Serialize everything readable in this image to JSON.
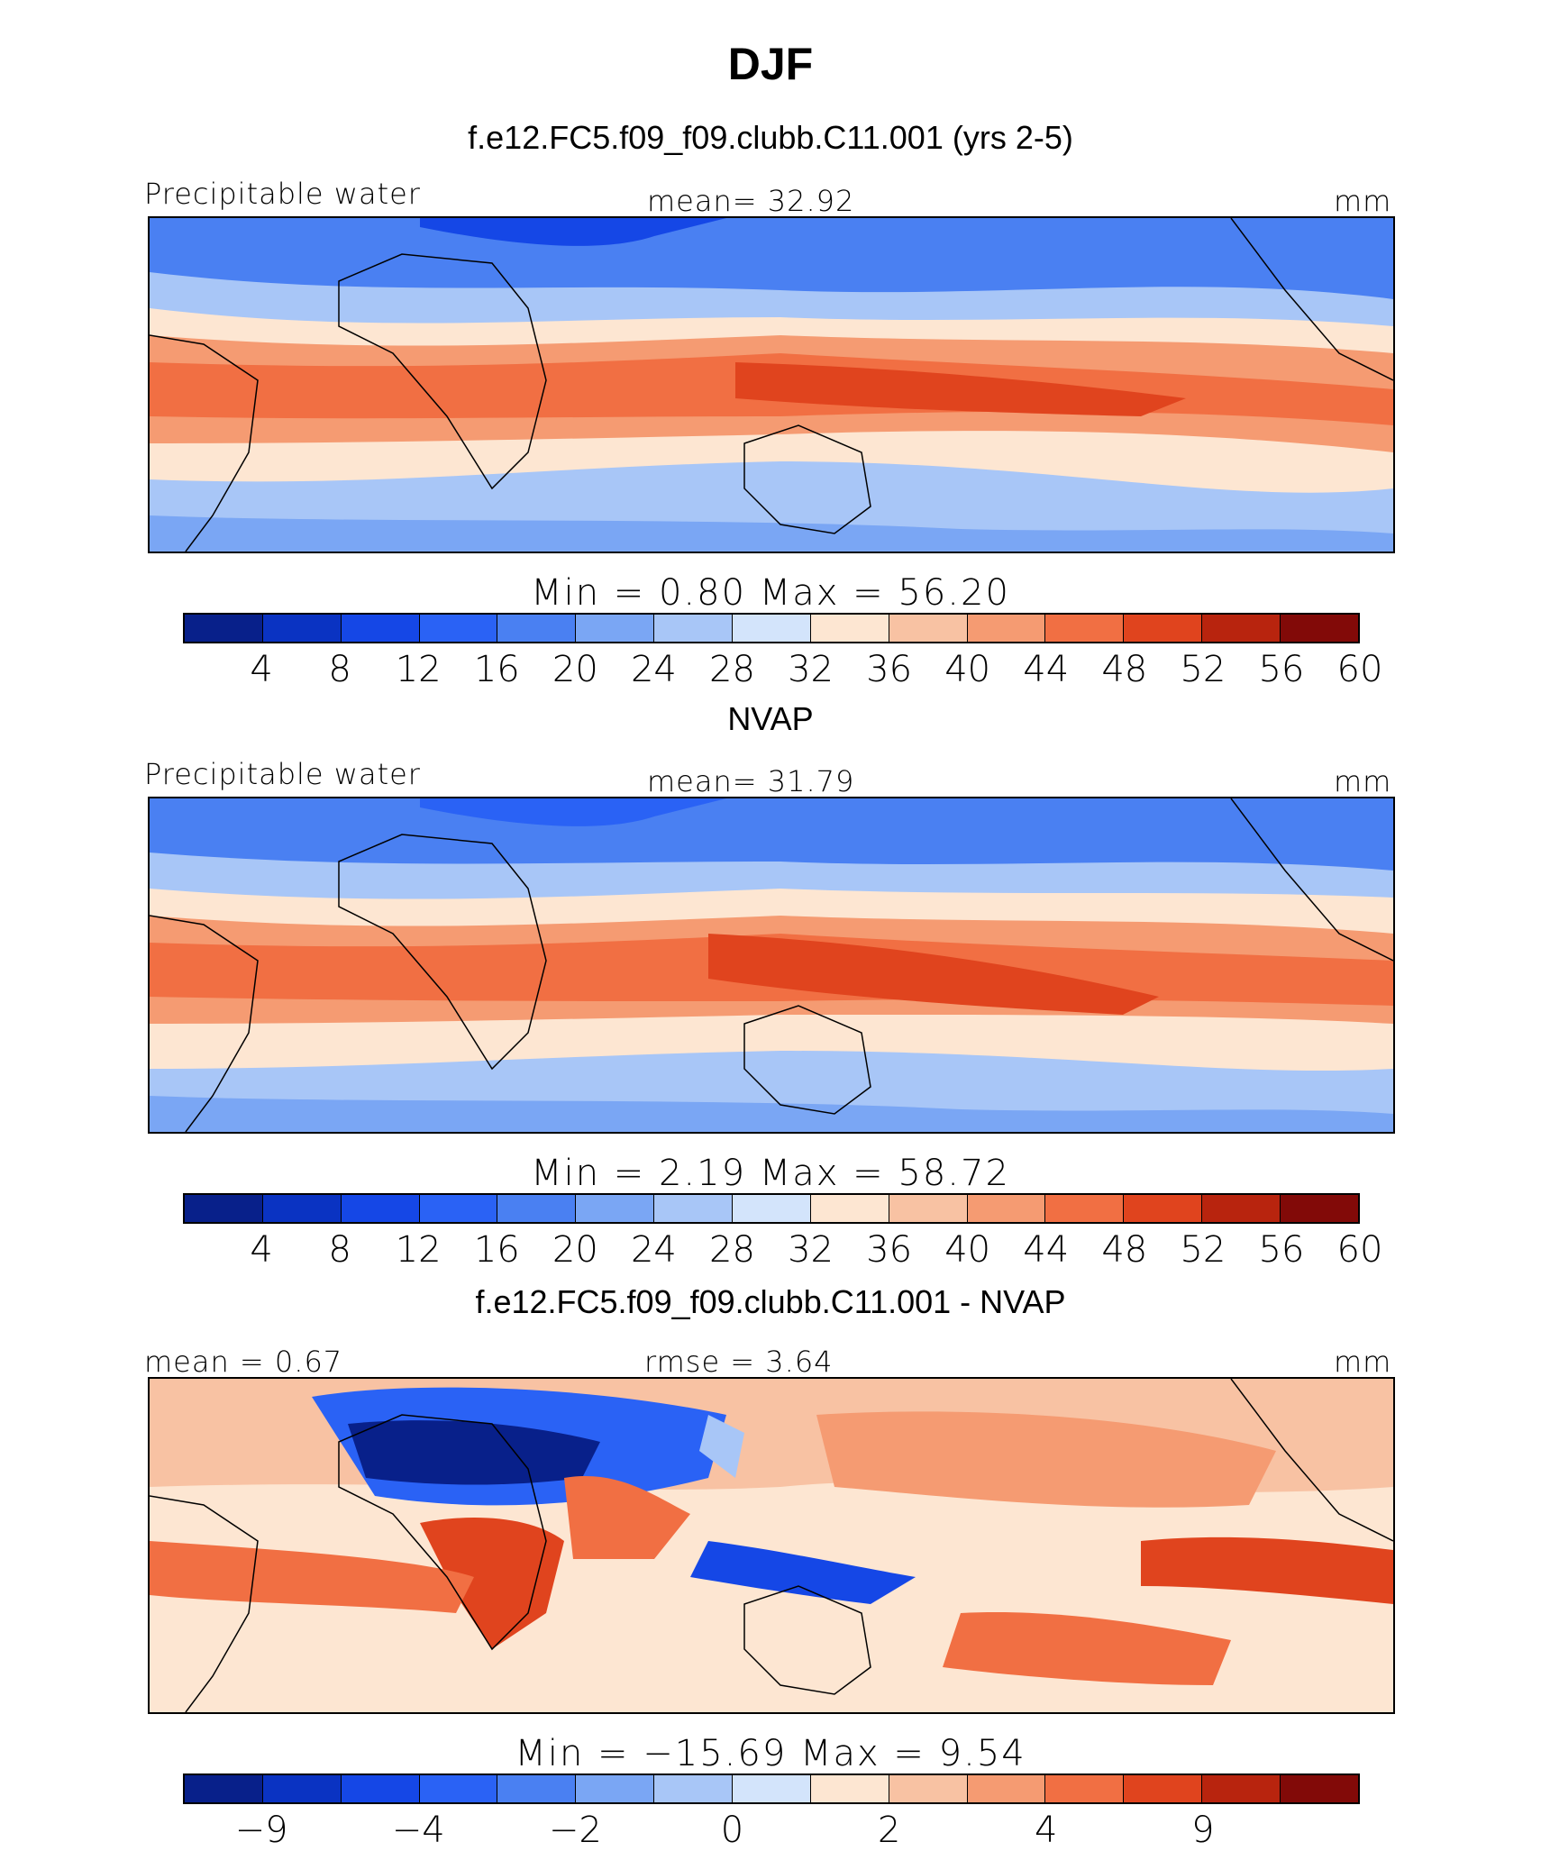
{
  "title": "DJF",
  "panels": [
    {
      "title": "f.e12.FC5.f09_f09.clubb.C11.001 (yrs 2-5)",
      "left_label": "Precipitable water",
      "center_label": "mean=   32.92",
      "right_label": "mm",
      "minmax": "Min  =    0.80  Max  =    56.20",
      "colors": [
        "#08208a",
        "#0a33c2",
        "#1547e6",
        "#2a62f5",
        "#4a80f2",
        "#7aa6f4",
        "#a8c6f7",
        "#d3e4fb",
        "#fde6d2",
        "#f8c2a3",
        "#f59b72",
        "#f16f43",
        "#e0441e",
        "#b8240e",
        "#820a08"
      ],
      "ticks": [
        "4",
        "8",
        "12",
        "16",
        "20",
        "24",
        "28",
        "32",
        "36",
        "40",
        "44",
        "48",
        "52",
        "56",
        "60"
      ]
    },
    {
      "title": "NVAP",
      "left_label": "Precipitable water",
      "center_label": "mean=   31.79",
      "right_label": "mm",
      "minmax": "Min  =    2.19  Max  =    58.72",
      "colors": [
        "#08208a",
        "#0a33c2",
        "#1547e6",
        "#2a62f5",
        "#4a80f2",
        "#7aa6f4",
        "#a8c6f7",
        "#d3e4fb",
        "#fde6d2",
        "#f8c2a3",
        "#f59b72",
        "#f16f43",
        "#e0441e",
        "#b8240e",
        "#820a08"
      ],
      "ticks": [
        "4",
        "8",
        "12",
        "16",
        "20",
        "24",
        "28",
        "32",
        "36",
        "40",
        "44",
        "48",
        "52",
        "56",
        "60"
      ]
    },
    {
      "title": "f.e12.FC5.f09_f09.clubb.C11.001 - NVAP",
      "left_label": "mean  =    0.67",
      "center_label": "rmse  =    3.64",
      "right_label": "mm",
      "minmax": "Min  = −15.69  Max  =     9.54",
      "colors": [
        "#08208a",
        "#0a33c2",
        "#1547e6",
        "#2a62f5",
        "#4a80f2",
        "#7aa6f4",
        "#a8c6f7",
        "#d3e4fb",
        "#fde6d2",
        "#f8c2a3",
        "#f59b72",
        "#f16f43",
        "#e0441e",
        "#b8240e",
        "#820a08"
      ],
      "ticks": [
        "−9",
        "−4",
        "−2",
        "0",
        "2",
        "4",
        "9"
      ]
    }
  ],
  "chart_data": [
    {
      "type": "heatmap",
      "title": "f.e12.FC5.f09_f09.clubb.C11.001 (yrs 2-5)",
      "variable": "Precipitable water",
      "units": "mm",
      "mean": 32.92,
      "min": 0.8,
      "max": 56.2,
      "contour_levels": [
        4,
        8,
        12,
        16,
        20,
        24,
        28,
        32,
        36,
        40,
        44,
        48,
        52,
        56,
        60
      ]
    },
    {
      "type": "heatmap",
      "title": "NVAP",
      "variable": "Precipitable water",
      "units": "mm",
      "mean": 31.79,
      "min": 2.19,
      "max": 58.72,
      "contour_levels": [
        4,
        8,
        12,
        16,
        20,
        24,
        28,
        32,
        36,
        40,
        44,
        48,
        52,
        56,
        60
      ]
    },
    {
      "type": "heatmap",
      "title": "f.e12.FC5.f09_f09.clubb.C11.001 - NVAP",
      "units": "mm",
      "mean": 0.67,
      "rmse": 3.64,
      "min": -15.69,
      "max": 9.54,
      "contour_levels": [
        -9,
        -4,
        -2,
        0,
        2,
        4,
        9
      ]
    }
  ]
}
